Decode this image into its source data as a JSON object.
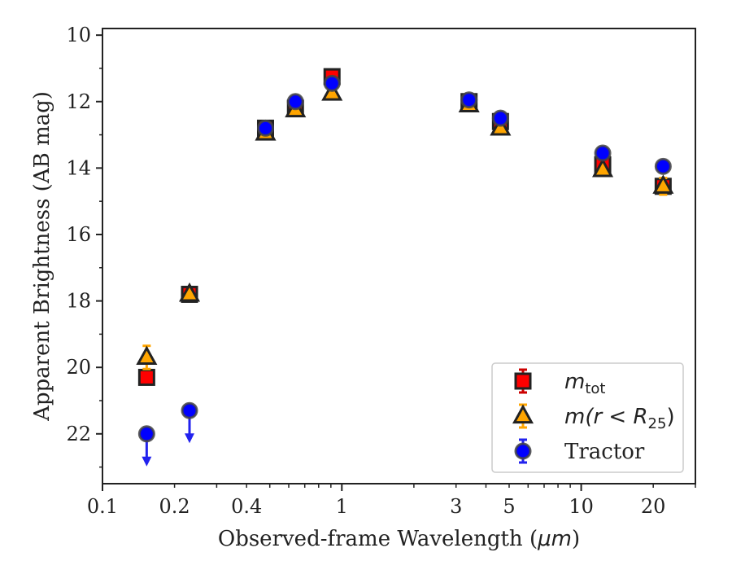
{
  "chart_data": {
    "type": "scatter",
    "xlabel_prefix": "Observed-frame Wavelength (",
    "xlabel_unit": "μm",
    "xlabel_suffix": ")",
    "ylabel": "Apparent Brightness (AB mag)",
    "x_scale": "log",
    "xlim": [
      0.1,
      30
    ],
    "ylim": [
      23.5,
      9.8
    ],
    "y_inverted": true,
    "x_ticks": [
      0.1,
      0.2,
      0.4,
      1,
      3,
      5,
      10,
      20
    ],
    "x_tick_labels": [
      "0.1",
      "0.2",
      "0.4",
      "1",
      "3",
      "5",
      "10",
      "20"
    ],
    "y_ticks": [
      10,
      12,
      14,
      16,
      18,
      20,
      22
    ],
    "y_tick_labels": [
      "10",
      "12",
      "14",
      "16",
      "18",
      "20",
      "22"
    ],
    "grid": false,
    "legend_position": "lower-right",
    "series": [
      {
        "key": "mtot",
        "legend_main": "m",
        "legend_sub": "tot",
        "marker": "square",
        "color": "#ff0000",
        "errcolor": "#cc0000",
        "points": [
          {
            "x": 0.153,
            "y": 20.3,
            "err": 0.1
          },
          {
            "x": 0.231,
            "y": 17.8,
            "err": 0.05
          },
          {
            "x": 0.48,
            "y": 12.8,
            "err": 0.03
          },
          {
            "x": 0.64,
            "y": 12.2,
            "err": 0.03
          },
          {
            "x": 0.91,
            "y": 11.25,
            "err": 0.03
          },
          {
            "x": 3.4,
            "y": 12.0,
            "err": 0.03
          },
          {
            "x": 4.6,
            "y": 12.6,
            "err": 0.03
          },
          {
            "x": 12.3,
            "y": 13.9,
            "err": 0.1
          },
          {
            "x": 22.0,
            "y": 14.55,
            "err": 0.15
          }
        ]
      },
      {
        "key": "mr25",
        "legend_main": "m(r < R",
        "legend_sub": "25",
        "legend_close": ")",
        "marker": "triangle",
        "color": "#ffa500",
        "errcolor": "#ffa500",
        "points": [
          {
            "x": 0.153,
            "y": 19.7,
            "err": 0.35
          },
          {
            "x": 0.231,
            "y": 17.8,
            "err": 0.08
          },
          {
            "x": 0.48,
            "y": 12.95,
            "err": 0.05
          },
          {
            "x": 0.64,
            "y": 12.25,
            "err": 0.05
          },
          {
            "x": 0.91,
            "y": 11.75,
            "err": 0.05
          },
          {
            "x": 3.4,
            "y": 12.1,
            "err": 0.05
          },
          {
            "x": 4.6,
            "y": 12.8,
            "err": 0.05
          },
          {
            "x": 12.3,
            "y": 14.05,
            "err": 0.08
          },
          {
            "x": 22.0,
            "y": 14.55,
            "err": 0.25
          }
        ]
      },
      {
        "key": "tractor",
        "legend_main": "Tractor",
        "marker": "circle",
        "color": "#0000ff",
        "errcolor": "#2222ee",
        "points": [
          {
            "x": 0.153,
            "y": 22.0,
            "upper_limit": true
          },
          {
            "x": 0.231,
            "y": 21.3,
            "upper_limit": true
          },
          {
            "x": 0.48,
            "y": 12.8,
            "err": 0.03
          },
          {
            "x": 0.64,
            "y": 12.0,
            "err": 0.03
          },
          {
            "x": 0.91,
            "y": 11.45,
            "err": 0.03
          },
          {
            "x": 3.4,
            "y": 11.95,
            "err": 0.03
          },
          {
            "x": 4.6,
            "y": 12.5,
            "err": 0.03
          },
          {
            "x": 12.3,
            "y": 13.55,
            "err": 0.05
          },
          {
            "x": 22.0,
            "y": 13.95,
            "err": 0.05
          }
        ]
      }
    ]
  }
}
